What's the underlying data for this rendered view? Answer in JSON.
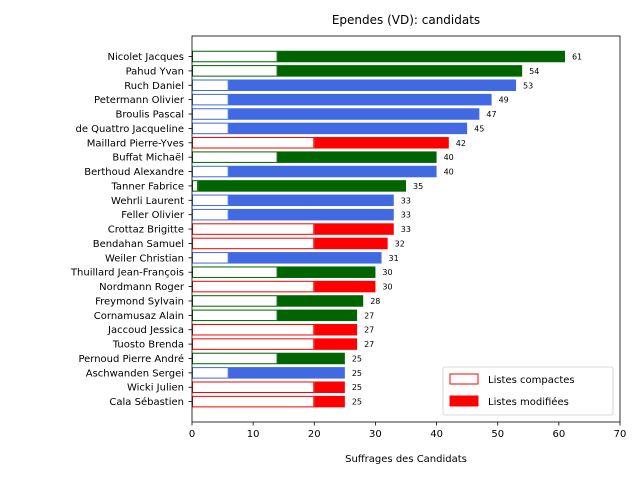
{
  "chart_data": {
    "type": "bar",
    "orientation": "horizontal",
    "title": "Ependes (VD): candidats",
    "xlabel": "Suffrages des Candidats",
    "ylabel": "",
    "xlim": [
      0,
      70
    ],
    "xticks": [
      0,
      10,
      20,
      30,
      40,
      50,
      60,
      70
    ],
    "legend_placement": "lower-right",
    "legend": [
      {
        "label": "Listes compactes",
        "style": "outline"
      },
      {
        "label": "Listes modifiées",
        "style": "filled"
      }
    ],
    "colors": {
      "green": "#006400",
      "blue": "#4169e1",
      "red": "#ff0000"
    },
    "candidates": [
      {
        "name": "Nicolet Jacques",
        "color": "green",
        "compact": 14,
        "total": 61
      },
      {
        "name": "Pahud Yvan",
        "color": "green",
        "compact": 14,
        "total": 54
      },
      {
        "name": "Ruch Daniel",
        "color": "blue",
        "compact": 6,
        "total": 53
      },
      {
        "name": "Petermann Olivier",
        "color": "blue",
        "compact": 6,
        "total": 49
      },
      {
        "name": "Broulis Pascal",
        "color": "blue",
        "compact": 6,
        "total": 47
      },
      {
        "name": "de Quattro Jacqueline",
        "color": "blue",
        "compact": 6,
        "total": 45
      },
      {
        "name": "Maillard Pierre-Yves",
        "color": "red",
        "compact": 20,
        "total": 42
      },
      {
        "name": "Buffat Michaël",
        "color": "green",
        "compact": 14,
        "total": 40
      },
      {
        "name": "Berthoud Alexandre",
        "color": "blue",
        "compact": 6,
        "total": 40
      },
      {
        "name": "Tanner Fabrice",
        "color": "green",
        "compact": 1,
        "total": 35
      },
      {
        "name": "Wehrli Laurent",
        "color": "blue",
        "compact": 6,
        "total": 33
      },
      {
        "name": "Feller Olivier",
        "color": "blue",
        "compact": 6,
        "total": 33
      },
      {
        "name": "Crottaz Brigitte",
        "color": "red",
        "compact": 20,
        "total": 33
      },
      {
        "name": "Bendahan Samuel",
        "color": "red",
        "compact": 20,
        "total": 32
      },
      {
        "name": "Weiler Christian",
        "color": "blue",
        "compact": 6,
        "total": 31
      },
      {
        "name": "Thuillard Jean-François",
        "color": "green",
        "compact": 14,
        "total": 30
      },
      {
        "name": "Nordmann Roger",
        "color": "red",
        "compact": 20,
        "total": 30
      },
      {
        "name": "Freymond Sylvain",
        "color": "green",
        "compact": 14,
        "total": 28
      },
      {
        "name": "Cornamusaz Alain",
        "color": "green",
        "compact": 14,
        "total": 27
      },
      {
        "name": "Jaccoud Jessica",
        "color": "red",
        "compact": 20,
        "total": 27
      },
      {
        "name": "Tuosto Brenda",
        "color": "red",
        "compact": 20,
        "total": 27
      },
      {
        "name": "Pernoud Pierre André",
        "color": "green",
        "compact": 14,
        "total": 25
      },
      {
        "name": "Aschwanden Sergei",
        "color": "blue",
        "compact": 6,
        "total": 25
      },
      {
        "name": "Wicki Julien",
        "color": "red",
        "compact": 20,
        "total": 25
      },
      {
        "name": "Cala Sébastien",
        "color": "red",
        "compact": 20,
        "total": 25
      }
    ]
  }
}
